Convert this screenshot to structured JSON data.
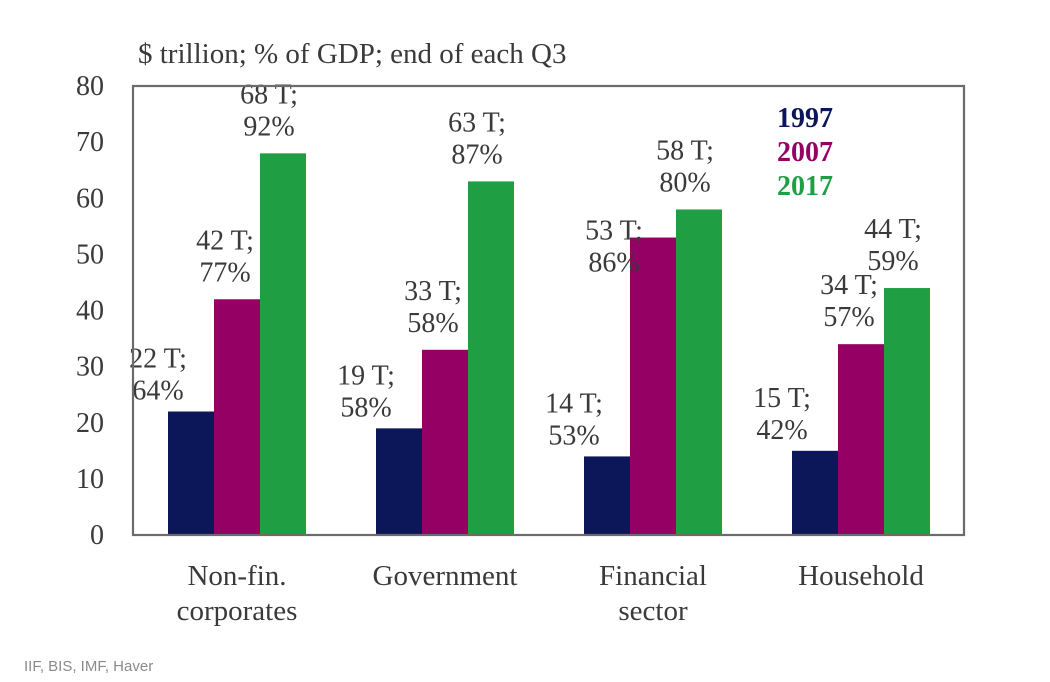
{
  "chart_data": {
    "type": "bar",
    "title": "$ trillion; % of GDP; end of each Q3",
    "xlabel": "",
    "ylabel": "",
    "ylim": [
      0,
      80
    ],
    "yticks": [
      0,
      10,
      20,
      30,
      40,
      50,
      60,
      70,
      80
    ],
    "grid": false,
    "legend_position": "top-right",
    "categories": [
      [
        "Non-fin.",
        "corporates"
      ],
      [
        "Government"
      ],
      [
        "Financial",
        "sector"
      ],
      [
        "Household"
      ]
    ],
    "series": [
      {
        "name": "1997",
        "color": "#0b1758",
        "values": [
          22,
          19,
          14,
          15
        ],
        "pct_of_gdp": [
          64,
          58,
          53,
          42
        ],
        "labels": [
          [
            "22 T;",
            "64%"
          ],
          [
            "19 T;",
            "58%"
          ],
          [
            "14 T;",
            "53%"
          ],
          [
            "15 T;",
            "42%"
          ]
        ]
      },
      {
        "name": "2007",
        "color": "#940063",
        "values": [
          42,
          33,
          53,
          34
        ],
        "pct_of_gdp": [
          77,
          58,
          86,
          57
        ],
        "labels": [
          [
            "42 T;",
            "77%"
          ],
          [
            "33 T;",
            "58%"
          ],
          [
            "53 T;",
            "86%"
          ],
          [
            "34 T;",
            "57%"
          ]
        ]
      },
      {
        "name": "2017",
        "color": "#1f9e44",
        "values": [
          68,
          63,
          58,
          44
        ],
        "pct_of_gdp": [
          92,
          87,
          80,
          59
        ],
        "labels": [
          [
            "68 T;",
            "92%"
          ],
          [
            "63 T;",
            "87%"
          ],
          [
            "58 T;",
            "80%"
          ],
          [
            "44 T;",
            "59%"
          ]
        ]
      }
    ]
  },
  "source_note": "IIF, BIS, IMF, Haver"
}
